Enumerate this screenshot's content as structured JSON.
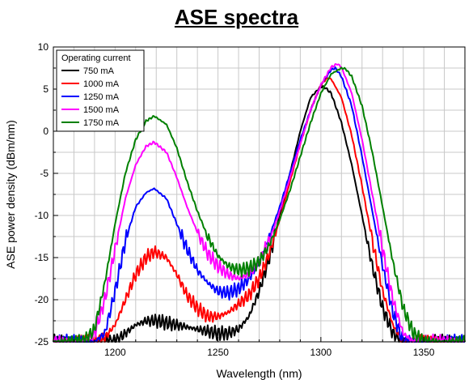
{
  "chart_data": {
    "type": "line",
    "title": "ASE spectra",
    "xlabel": "Wavelength (nm)",
    "ylabel": "ASE power density (dBm/nm)",
    "xlim": [
      1170,
      1370
    ],
    "ylim": [
      -25,
      10
    ],
    "x_ticks": [
      1200,
      1250,
      1300,
      1350
    ],
    "y_ticks": [
      -25,
      -20,
      -15,
      -10,
      -5,
      0,
      5,
      10
    ],
    "grid": true,
    "legend": {
      "title": "Operating current",
      "placement": "top-left"
    },
    "series": [
      {
        "name": "750 mA",
        "color": "#000000",
        "x": [
          1170,
          1180,
          1190,
          1200,
          1210,
          1215,
          1220,
          1230,
          1240,
          1250,
          1255,
          1260,
          1265,
          1270,
          1275,
          1280,
          1285,
          1290,
          1295,
          1300,
          1302,
          1305,
          1310,
          1315,
          1320,
          1325,
          1330,
          1335,
          1340,
          1350,
          1360,
          1370
        ],
        "y": [
          -25,
          -25,
          -25,
          -25,
          -23,
          -22.5,
          -22.5,
          -23,
          -23.5,
          -24,
          -24,
          -23.5,
          -22,
          -19,
          -15,
          -10,
          -5,
          0,
          4,
          5.3,
          5.2,
          4.5,
          1,
          -4,
          -10,
          -16,
          -21,
          -24,
          -25,
          -25,
          -25,
          -25
        ]
      },
      {
        "name": "1000 mA",
        "color": "#ff0000",
        "x": [
          1170,
          1180,
          1190,
          1195,
          1200,
          1205,
          1210,
          1215,
          1219,
          1225,
          1230,
          1235,
          1240,
          1245,
          1250,
          1255,
          1260,
          1265,
          1270,
          1275,
          1280,
          1285,
          1290,
          1295,
          1300,
          1303,
          1305,
          1310,
          1315,
          1320,
          1325,
          1330,
          1335,
          1340,
          1345,
          1350,
          1360,
          1370
        ],
        "y": [
          -25,
          -25,
          -25,
          -24.5,
          -23,
          -20,
          -17,
          -15,
          -14.3,
          -15,
          -17,
          -19.5,
          -21,
          -22,
          -22,
          -21.5,
          -20.5,
          -19.5,
          -17.5,
          -14.5,
          -10.5,
          -6,
          -1.5,
          2.5,
          5.5,
          6.3,
          6.2,
          4,
          -0.5,
          -6.5,
          -13,
          -19,
          -23,
          -25,
          -25,
          -25,
          -25,
          -25
        ]
      },
      {
        "name": "1250 mA",
        "color": "#0000ff",
        "x": [
          1170,
          1180,
          1190,
          1195,
          1200,
          1205,
          1210,
          1215,
          1219,
          1225,
          1230,
          1235,
          1240,
          1245,
          1250,
          1255,
          1260,
          1265,
          1270,
          1275,
          1280,
          1285,
          1290,
          1295,
          1300,
          1305,
          1307,
          1310,
          1315,
          1320,
          1325,
          1330,
          1335,
          1340,
          1345,
          1350,
          1360,
          1370
        ],
        "y": [
          -25,
          -25,
          -25,
          -24,
          -19,
          -13,
          -9,
          -7.3,
          -6.8,
          -8,
          -11,
          -14,
          -16.5,
          -18,
          -19,
          -19.2,
          -18.7,
          -17.5,
          -15.5,
          -12.5,
          -9,
          -5,
          -1,
          2.5,
          5.5,
          7.3,
          7.5,
          6.5,
          3,
          -3,
          -9.5,
          -16,
          -21.5,
          -25,
          -25,
          -25,
          -25,
          -25
        ]
      },
      {
        "name": "1500 mA",
        "color": "#ff00ff",
        "x": [
          1170,
          1180,
          1185,
          1190,
          1195,
          1200,
          1205,
          1210,
          1215,
          1219,
          1225,
          1230,
          1235,
          1240,
          1245,
          1250,
          1255,
          1260,
          1265,
          1270,
          1275,
          1280,
          1285,
          1290,
          1295,
          1300,
          1305,
          1308,
          1310,
          1315,
          1320,
          1325,
          1330,
          1335,
          1340,
          1345,
          1350,
          1360,
          1370
        ],
        "y": [
          -25,
          -25,
          -25,
          -24,
          -20,
          -14,
          -8,
          -4,
          -1.8,
          -1.3,
          -2.5,
          -5.5,
          -9,
          -12,
          -14.5,
          -16,
          -17,
          -17.5,
          -17,
          -15.5,
          -13,
          -9.5,
          -5.5,
          -1.5,
          2.5,
          5.5,
          7.6,
          8,
          7.6,
          4.5,
          -1,
          -7.5,
          -14,
          -20,
          -24,
          -25,
          -25,
          -25,
          -25
        ]
      },
      {
        "name": "1750 mA",
        "color": "#008000",
        "x": [
          1170,
          1180,
          1185,
          1190,
          1195,
          1200,
          1205,
          1210,
          1215,
          1219,
          1225,
          1230,
          1235,
          1240,
          1245,
          1250,
          1255,
          1260,
          1265,
          1270,
          1275,
          1280,
          1285,
          1290,
          1295,
          1300,
          1305,
          1310,
          1312,
          1315,
          1320,
          1325,
          1330,
          1335,
          1340,
          1345,
          1350,
          1360,
          1370
        ],
        "y": [
          -25,
          -25,
          -25,
          -23.5,
          -18,
          -11,
          -5,
          -1,
          1.2,
          1.8,
          0.8,
          -2,
          -6,
          -9.5,
          -12.5,
          -14.8,
          -16,
          -16.5,
          -16.3,
          -15.5,
          -13.5,
          -10.5,
          -7,
          -3,
          1,
          4.5,
          6.8,
          7.5,
          7.4,
          6.5,
          3,
          -2.5,
          -9,
          -15.5,
          -21,
          -24,
          -25,
          -25,
          -25
        ]
      }
    ]
  }
}
